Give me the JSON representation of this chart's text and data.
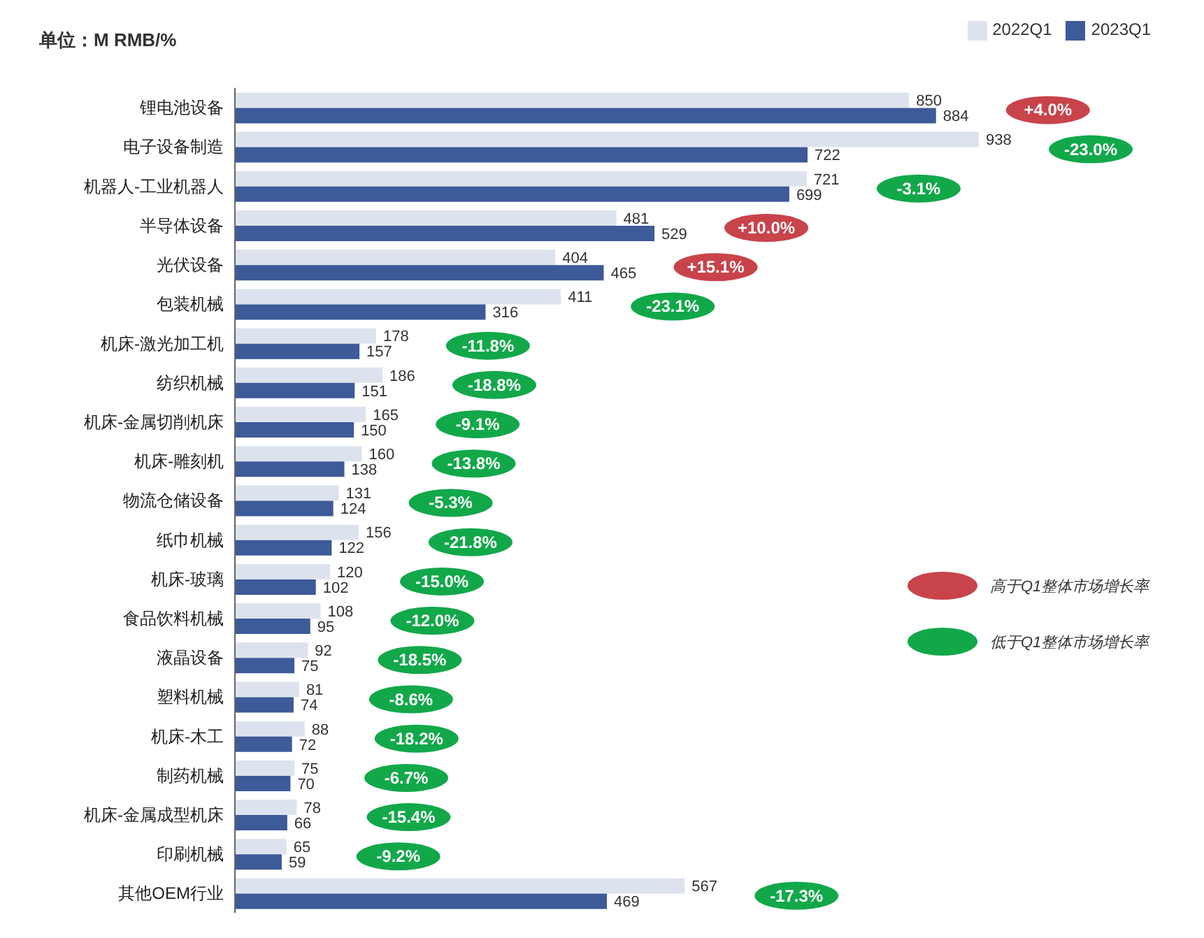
{
  "chart_data": {
    "type": "bar",
    "orientation": "horizontal",
    "title": "单位：M RMB/%",
    "categories": [
      "锂电池设备",
      "电子设备制造",
      "机器人-工业机器人",
      "半导体设备",
      "光伏设备",
      "包装机械",
      "机床-激光加工机",
      "纺织机械",
      "机床-金属切削机床",
      "机床-雕刻机",
      "物流仓储设备",
      "纸巾机械",
      "机床-玻璃",
      "食品饮料机械",
      "液晶设备",
      "塑料机械",
      "机床-木工",
      "制药机械",
      "机床-金属成型机床",
      "印刷机械",
      "其他OEM行业"
    ],
    "series": [
      {
        "name": "2022Q1",
        "color": "#dde3ee",
        "values": [
          850,
          938,
          721,
          481,
          404,
          411,
          178,
          186,
          165,
          160,
          131,
          156,
          120,
          108,
          92,
          81,
          88,
          75,
          78,
          65,
          567
        ]
      },
      {
        "name": "2023Q1",
        "color": "#3d5a99",
        "values": [
          884,
          722,
          699,
          529,
          465,
          316,
          157,
          151,
          150,
          138,
          124,
          122,
          102,
          95,
          75,
          74,
          72,
          70,
          66,
          59,
          469
        ]
      }
    ],
    "data_labels": true,
    "legend": "top right",
    "annotations": [
      "+4.0%",
      "-23.0%",
      "-3.1%",
      "+10.0%",
      "+15.1%",
      "-23.1%",
      "-11.8%",
      "-18.8%",
      "-9.1%",
      "-13.8%",
      "-5.3%",
      "-21.8%",
      "-15.0%",
      "-12.0%",
      "-18.5%",
      "-8.6%",
      "-18.2%",
      "-6.7%",
      "-15.4%",
      "-9.2%",
      "-17.3%",
      "高于Q1整体市场增长率",
      "低于Q1整体市场增长率"
    ]
  }
}
